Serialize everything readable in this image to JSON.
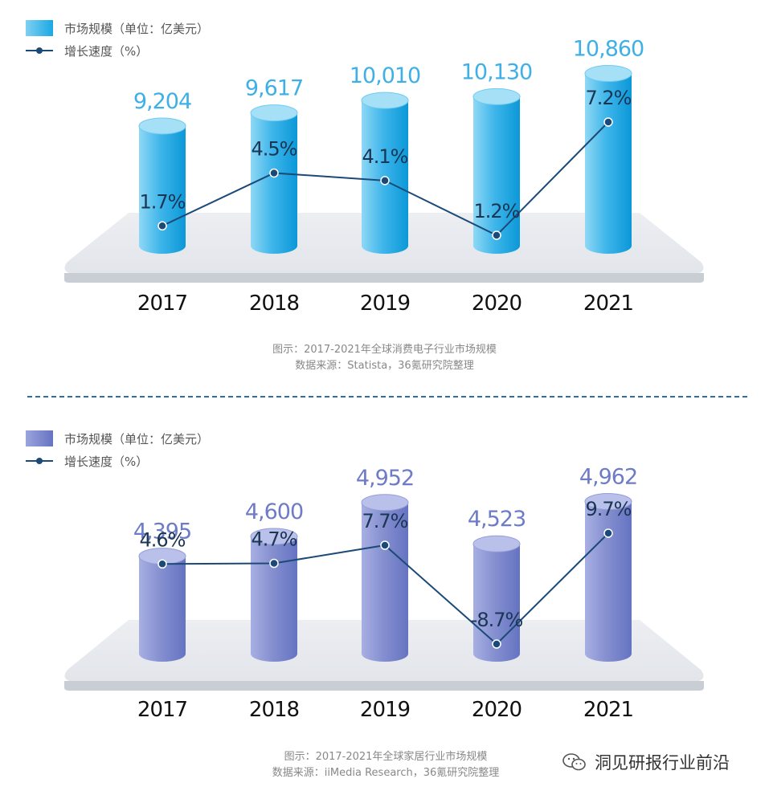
{
  "chart_data": [
    {
      "type": "bar",
      "categories": [
        "2017",
        "2018",
        "2019",
        "2020",
        "2021"
      ],
      "series": [
        {
          "name": "市场规模（单位：亿美元）",
          "values": [
            9204,
            9617,
            10010,
            10130,
            10860
          ],
          "labels": [
            "9,204",
            "9,617",
            "10,010",
            "10,130",
            "10,860"
          ]
        },
        {
          "name": "增长速度（%）",
          "values": [
            1.7,
            4.5,
            4.1,
            1.2,
            7.2
          ],
          "labels": [
            "1.7%",
            "4.5%",
            "4.1%",
            "1.2%",
            "7.2%"
          ]
        }
      ],
      "caption": "图示：2017-2021年全球消费电子行业市场规模",
      "source": "数据来源：Statista，36氪研究院整理",
      "colors": {
        "bar": "#3fb6ea",
        "line": "#1b4a78"
      }
    },
    {
      "type": "bar",
      "categories": [
        "2017",
        "2018",
        "2019",
        "2020",
        "2021"
      ],
      "series": [
        {
          "name": "市场规模（单位：亿美元）",
          "values": [
            4395,
            4600,
            4952,
            4523,
            4962
          ],
          "labels": [
            "4,395",
            "4,600",
            "4,952",
            "4,523",
            "4,962"
          ]
        },
        {
          "name": "增长速度（%）",
          "values": [
            4.6,
            4.7,
            7.7,
            -8.7,
            9.7
          ],
          "labels": [
            "4.6%",
            "4.7%",
            "7.7%",
            "-8.7%",
            "9.7%"
          ]
        }
      ],
      "caption": "图示：2017-2021年全球家居行业市场规模",
      "source": "数据来源：iiMedia Research，36氪研究院整理",
      "colors": {
        "bar": "#7f8cd0",
        "line": "#1b4a78"
      }
    }
  ],
  "watermark": {
    "text": "洞见研报行业前沿",
    "icon": "wechat-icon"
  }
}
